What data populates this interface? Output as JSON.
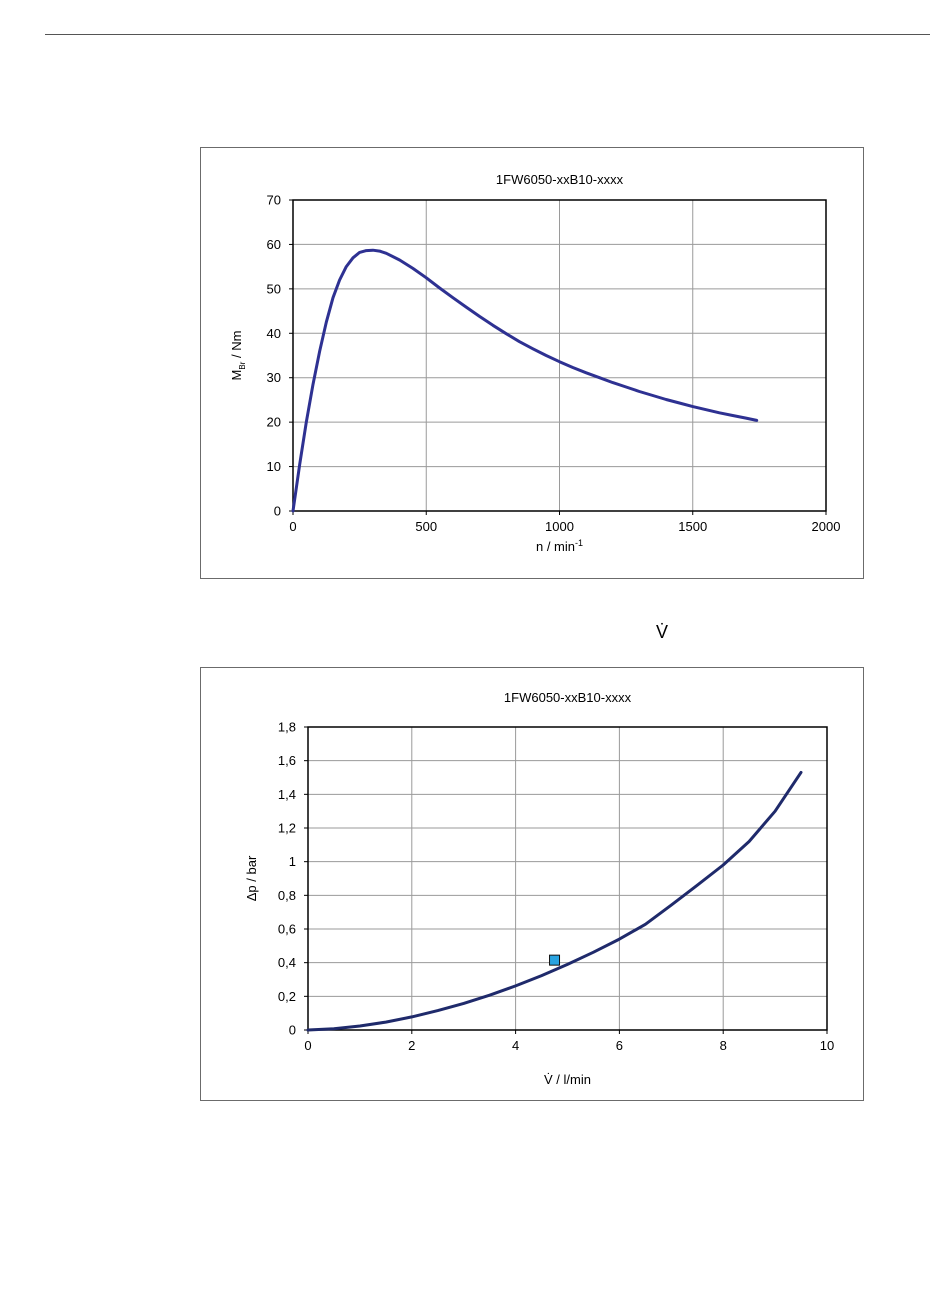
{
  "symbol": "V̇",
  "chart_data": [
    {
      "type": "line",
      "title": "1FW6050-xxB10-xxxx",
      "xlabel": {
        "main": "n / min",
        "sup": "-1"
      },
      "ylabel": {
        "main": "M",
        "sub": "Br",
        "rest": " / Nm"
      },
      "xlim": [
        0,
        2000
      ],
      "ylim": [
        0,
        70
      ],
      "xticks": [
        0,
        500,
        1000,
        1500,
        2000
      ],
      "yticks": [
        0,
        10,
        20,
        30,
        40,
        50,
        60,
        70
      ],
      "xtick_labels": [
        "0",
        "500",
        "1000",
        "1500",
        "2000"
      ],
      "ytick_labels": [
        "0",
        "10",
        "20",
        "30",
        "40",
        "50",
        "60",
        "70"
      ],
      "grid": true,
      "line_color": "#2e3192",
      "series": [
        {
          "x": [
            0,
            25,
            50,
            75,
            100,
            125,
            150,
            175,
            200,
            225,
            250,
            275,
            300,
            325,
            350,
            400,
            450,
            500,
            550,
            600,
            650,
            700,
            750,
            800,
            850,
            900,
            950,
            1000,
            1050,
            1100,
            1150,
            1200,
            1250,
            1300,
            1350,
            1400,
            1450,
            1500,
            1550,
            1600,
            1650,
            1700,
            1740
          ],
          "y": [
            0,
            10.5,
            20,
            28.5,
            36,
            42.5,
            48,
            52,
            55,
            57,
            58.2,
            58.6,
            58.7,
            58.5,
            58.0,
            56.5,
            54.6,
            52.5,
            50.2,
            48.0,
            45.9,
            43.8,
            41.8,
            39.9,
            38.1,
            36.5,
            35.0,
            33.6,
            32.3,
            31.1,
            30.0,
            28.9,
            27.9,
            26.9,
            26.0,
            25.1,
            24.3,
            23.5,
            22.8,
            22.1,
            21.5,
            20.9,
            20.4
          ]
        }
      ]
    },
    {
      "type": "line",
      "title": "1FW6050-xxB10-xxxx",
      "xlabel": {
        "main": "V̇ / l/min"
      },
      "ylabel": {
        "main": "Δp / bar"
      },
      "xlim": [
        0,
        10
      ],
      "ylim": [
        0,
        1.8
      ],
      "xticks": [
        0,
        2,
        4,
        6,
        8,
        10
      ],
      "yticks": [
        0,
        0.2,
        0.4,
        0.6,
        0.8,
        1.0,
        1.2,
        1.4,
        1.6,
        1.8
      ],
      "xtick_labels": [
        "0",
        "2",
        "4",
        "6",
        "8",
        "10"
      ],
      "ytick_labels": [
        "0",
        "0,2",
        "0,4",
        "0,6",
        "0,8",
        "1",
        "1,2",
        "1,4",
        "1,6",
        "1,8"
      ],
      "grid": true,
      "line_color": "#1f2a6b",
      "marker": {
        "x": 4.75,
        "y": 0.415,
        "color": "#29a3e0"
      },
      "series": [
        {
          "x": [
            0,
            0.5,
            1,
            1.5,
            2,
            2.5,
            3,
            3.5,
            4,
            4.5,
            5,
            5.5,
            6,
            6.5,
            7,
            7.5,
            8,
            8.5,
            9,
            9.5
          ],
          "y": [
            0,
            0.008,
            0.024,
            0.047,
            0.078,
            0.115,
            0.158,
            0.207,
            0.262,
            0.323,
            0.39,
            0.462,
            0.54,
            0.628,
            0.742,
            0.86,
            0.98,
            1.12,
            1.3,
            1.53
          ]
        }
      ]
    }
  ]
}
